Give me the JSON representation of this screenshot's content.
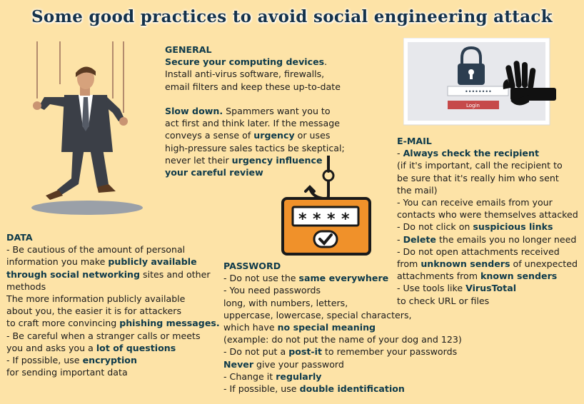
{
  "title": "Some good practices to avoid social engineering attack",
  "login_label": "Login",
  "password_mask": "••••••••",
  "general": {
    "heading": "GENERAL",
    "lines": [
      [
        {
          "t": "Secure your computing devices",
          "b": true
        },
        {
          "t": ".",
          "b": false
        }
      ],
      [
        {
          "t": "Install anti-virus software, firewalls,",
          "b": false
        }
      ],
      [
        {
          "t": "email filters and keep these up-to-date",
          "b": false
        }
      ],
      [
        {
          "t": "",
          "b": false
        }
      ],
      [
        {
          "t": "Slow down.",
          "b": true
        },
        {
          "t": " Spammers want you to",
          "b": false
        }
      ],
      [
        {
          "t": "act first and think later. If the message",
          "b": false
        }
      ],
      [
        {
          "t": "conveys a sense of ",
          "b": false
        },
        {
          "t": "urgency",
          "b": true
        },
        {
          "t": " or uses",
          "b": false
        }
      ],
      [
        {
          "t": "high-pressure sales tactics be skeptical;",
          "b": false
        }
      ],
      [
        {
          "t": "never let their ",
          "b": false
        },
        {
          "t": "urgency influence",
          "b": true
        }
      ],
      [
        {
          "t": "your careful review",
          "b": true
        }
      ]
    ]
  },
  "email": {
    "heading": "E-MAIL",
    "lines": [
      [
        {
          "t": "- ",
          "b": false
        },
        {
          "t": "Always check the recipient",
          "b": true
        }
      ],
      [
        {
          "t": "(if it's important, call the recipient to",
          "b": false
        }
      ],
      [
        {
          "t": "be sure that it's really him who sent",
          "b": false
        }
      ],
      [
        {
          "t": "the mail)",
          "b": false
        }
      ],
      [
        {
          "t": "- You can receive emails from your",
          "b": false
        }
      ],
      [
        {
          "t": "contacts who were themselves attacked",
          "b": false
        }
      ],
      [
        {
          "t": "- Do not click on ",
          "b": false
        },
        {
          "t": "suspicious links",
          "b": true
        }
      ],
      [
        {
          "t": "- ",
          "b": false
        },
        {
          "t": "Delete",
          "b": true
        },
        {
          "t": " the emails you no longer need",
          "b": false
        }
      ],
      [
        {
          "t": "- Do not open attachments received",
          "b": false
        }
      ],
      [
        {
          "t": "from ",
          "b": false
        },
        {
          "t": "unknown senders",
          "b": true
        },
        {
          "t": " of unexpected",
          "b": false
        }
      ],
      [
        {
          "t": "attachments from ",
          "b": false
        },
        {
          "t": "known senders",
          "b": true
        }
      ],
      [
        {
          "t": "- Use tools like ",
          "b": false
        },
        {
          "t": "VirusTotal",
          "b": true
        }
      ],
      [
        {
          "t": "to check URL or files",
          "b": false
        }
      ]
    ]
  },
  "data_section": {
    "heading": "DATA",
    "lines": [
      [
        {
          "t": "- Be cautious of the amount of personal",
          "b": false
        }
      ],
      [
        {
          "t": "information you make ",
          "b": false
        },
        {
          "t": "publicly available",
          "b": true
        }
      ],
      [
        {
          "t": "through social networking",
          "b": true
        },
        {
          "t": " sites and other",
          "b": false
        }
      ],
      [
        {
          "t": "methods",
          "b": false
        }
      ],
      [
        {
          "t": "The more information publicly available",
          "b": false
        }
      ],
      [
        {
          "t": "about you, the easier it is for attackers",
          "b": false
        }
      ],
      [
        {
          "t": "to craft more convincing ",
          "b": false
        },
        {
          "t": "phishing messages.",
          "b": true
        }
      ],
      [
        {
          "t": "- Be careful when a stranger calls or meets",
          "b": false
        }
      ],
      [
        {
          "t": "you and asks you a ",
          "b": false
        },
        {
          "t": "lot of questions",
          "b": true
        }
      ],
      [
        {
          "t": "- If possible, use ",
          "b": false
        },
        {
          "t": "encryption",
          "b": true
        }
      ],
      [
        {
          "t": "for sending important data",
          "b": false
        }
      ]
    ]
  },
  "password": {
    "heading": "PASSWORD",
    "lines": [
      [
        {
          "t": "- Do not use the ",
          "b": false
        },
        {
          "t": "same everywhere",
          "b": true
        }
      ],
      [
        {
          "t": "- You need passwords",
          "b": false
        }
      ],
      [
        {
          "t": "long, with numbers, letters,",
          "b": false
        }
      ],
      [
        {
          "t": "uppercase, lowercase, special characters,",
          "b": false
        }
      ],
      [
        {
          "t": "which have ",
          "b": false
        },
        {
          "t": "no special meaning",
          "b": true
        }
      ],
      [
        {
          "t": "(example: do not put the name of your dog and 123)",
          "b": false
        }
      ],
      [
        {
          "t": "- Do not put a ",
          "b": false
        },
        {
          "t": "post-it",
          "b": true
        },
        {
          "t": " to remember your passwords",
          "b": false
        }
      ],
      [
        {
          "t": "Never",
          "b": true
        },
        {
          "t": " give your password",
          "b": false
        }
      ],
      [
        {
          "t": "- Change it ",
          "b": false
        },
        {
          "t": "regularly",
          "b": true
        }
      ],
      [
        {
          "t": "- If possible, use ",
          "b": false
        },
        {
          "t": "double identification",
          "b": true
        }
      ]
    ]
  }
}
